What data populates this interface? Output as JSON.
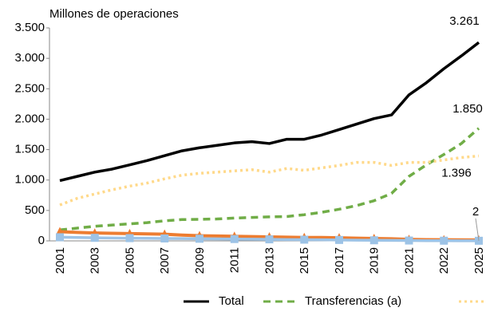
{
  "chart_data": {
    "type": "line",
    "ylabel": "Millones de operaciones",
    "categories": [
      "2001",
      null,
      "2003",
      null,
      "2005",
      null,
      "2007",
      null,
      "2009",
      null,
      "2011",
      null,
      "2013",
      null,
      "2015",
      null,
      "2017",
      null,
      "2019",
      null,
      "2021",
      null,
      "2022",
      null,
      "2025"
    ],
    "ylim": [
      0,
      3500
    ],
    "yticks": [
      0,
      500,
      {
        "value": 1000,
        "label": "1.000"
      },
      {
        "value": 1500,
        "label": "1.500"
      },
      {
        "value": 2000,
        "label": "2.000"
      },
      {
        "value": 2500,
        "label": "2.500"
      },
      {
        "value": 3000,
        "label": "3.000"
      },
      {
        "value": 3500,
        "label": "3.500"
      }
    ],
    "series": [
      {
        "name": "Total",
        "color": "#000000",
        "style": "solid",
        "values": [
          990,
          1060,
          1130,
          1180,
          1250,
          1320,
          1400,
          1480,
          1530,
          1570,
          1610,
          1630,
          1600,
          1670,
          1670,
          1740,
          1830,
          1920,
          2010,
          2070,
          2400,
          2600,
          2830,
          3040,
          3261
        ],
        "value_labels": [
          null,
          null,
          null,
          null,
          null,
          null,
          null,
          null,
          null,
          null,
          null,
          null,
          null,
          null,
          null,
          null,
          null,
          null,
          null,
          null,
          null,
          null,
          null,
          null,
          "3.261"
        ]
      },
      {
        "name": "Transferencias (a)",
        "color": "#70ad47",
        "style": "dashed",
        "values": [
          180,
          210,
          240,
          260,
          280,
          300,
          330,
          350,
          355,
          360,
          375,
          385,
          395,
          400,
          430,
          470,
          520,
          580,
          660,
          780,
          1060,
          1250,
          1420,
          1600,
          1850
        ],
        "value_labels": [
          null,
          null,
          null,
          null,
          null,
          null,
          null,
          null,
          null,
          null,
          null,
          null,
          null,
          null,
          null,
          null,
          null,
          null,
          null,
          null,
          null,
          null,
          null,
          null,
          "1.850"
        ]
      },
      {
        "color": "#ffd98a",
        "style": "dotted",
        "values": [
          590,
          700,
          770,
          840,
          900,
          950,
          1020,
          1080,
          1110,
          1130,
          1150,
          1170,
          1130,
          1190,
          1160,
          1200,
          1240,
          1290,
          1290,
          1240,
          1290,
          1290,
          1330,
          1370,
          1396
        ],
        "value_labels": [
          null,
          null,
          null,
          null,
          null,
          null,
          null,
          null,
          null,
          null,
          null,
          null,
          null,
          null,
          null,
          null,
          null,
          null,
          null,
          null,
          null,
          null,
          null,
          null,
          "1.396"
        ]
      },
      {
        "color": "#ed7d31",
        "style": "solid",
        "marker": "triangle",
        "values": [
          150,
          140,
          130,
          125,
          120,
          115,
          110,
          95,
          85,
          80,
          75,
          70,
          65,
          60,
          55,
          55,
          50,
          45,
          40,
          35,
          25,
          20,
          18,
          16,
          14
        ]
      },
      {
        "color": "#9dc3e6",
        "style": "solid",
        "marker": "square",
        "values": [
          60,
          55,
          50,
          48,
          45,
          42,
          40,
          38,
          35,
          33,
          30,
          28,
          25,
          22,
          20,
          18,
          15,
          12,
          10,
          8,
          6,
          4,
          3,
          2,
          2
        ],
        "value_labels": [
          null,
          null,
          null,
          null,
          null,
          null,
          null,
          null,
          null,
          null,
          null,
          null,
          null,
          null,
          null,
          null,
          null,
          null,
          null,
          null,
          null,
          null,
          null,
          null,
          "2"
        ]
      }
    ]
  }
}
